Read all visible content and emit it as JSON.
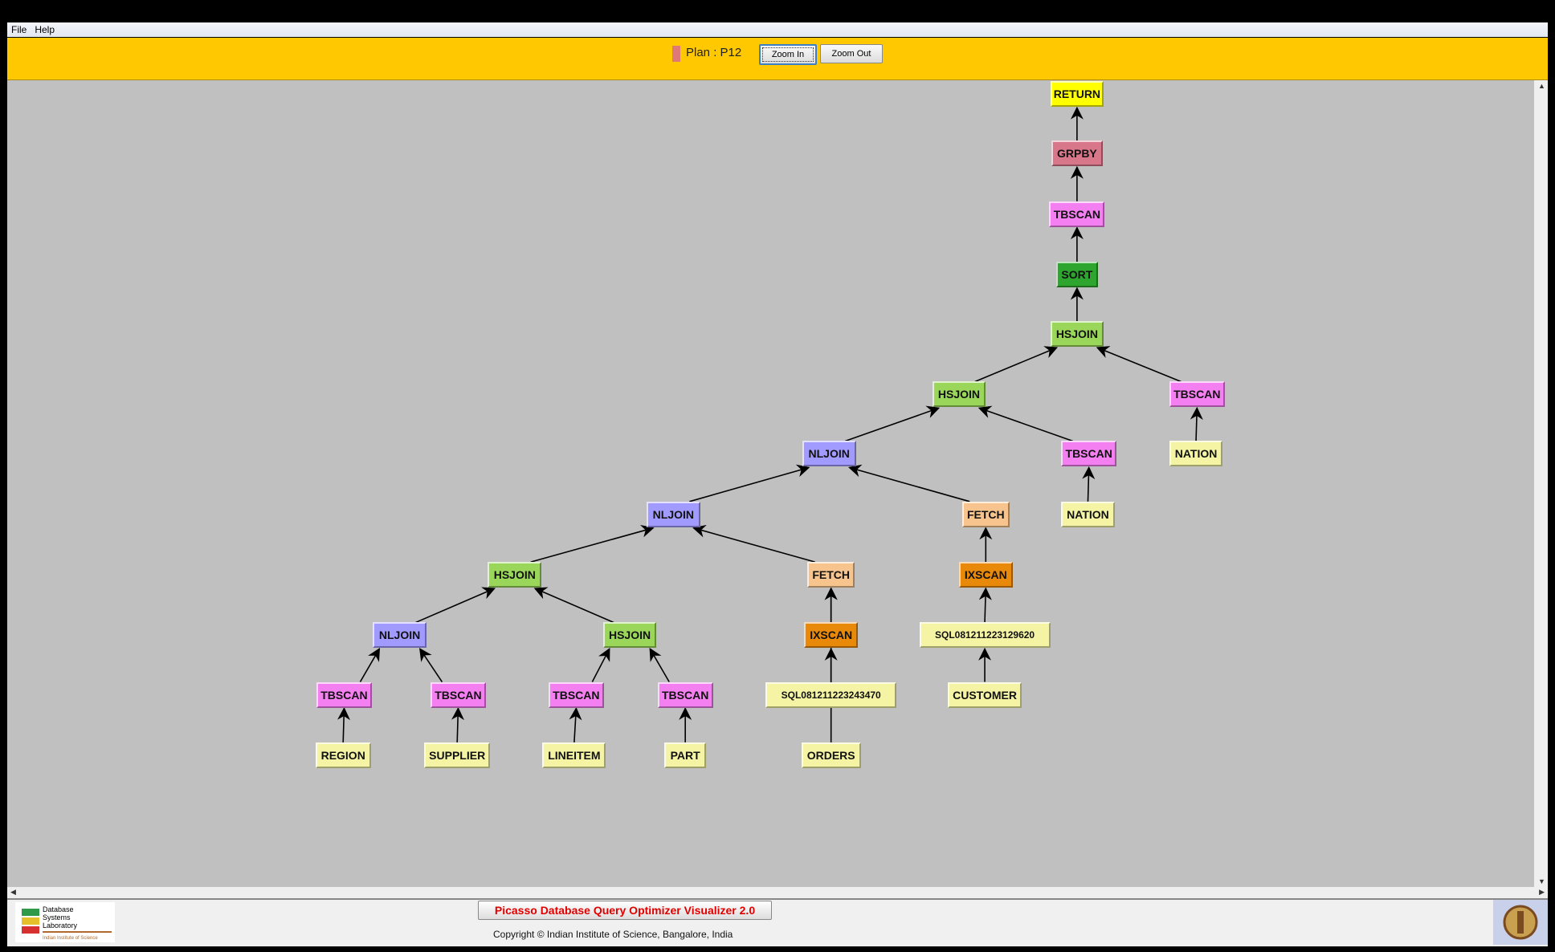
{
  "menu": {
    "items": [
      "File",
      "Help"
    ]
  },
  "toolbar": {
    "plan_label": "Plan : P12",
    "plan_color": "#e07878",
    "zoom_in": "Zoom In",
    "zoom_out": "Zoom Out"
  },
  "footer": {
    "title": "Picasso Database Query Optimizer Visualizer 2.0",
    "copyright": "Copyright © Indian Institute of Science, Bangalore, India",
    "lab_logo_text": "Database Systems Laboratory — Indian Institute of Science"
  },
  "type_colors": {
    "RETURN": "#ffff00",
    "GRPBY": "#d9778a",
    "TBSCAN": "#f47ff0",
    "SORT": "#2ea52e",
    "HSJOIN": "#9ad65a",
    "NLJOIN": "#a29bff",
    "FETCH": "#f6c48c",
    "IXSCAN": "#e8890a",
    "TABLE": "#f4f4a4"
  },
  "plan": {
    "nodes": [
      {
        "id": 0,
        "label": "RETURN",
        "type": "RETURN",
        "parent": null
      },
      {
        "id": 1,
        "label": "GRPBY",
        "type": "GRPBY",
        "parent": 0
      },
      {
        "id": 2,
        "label": "TBSCAN",
        "type": "TBSCAN",
        "parent": 1
      },
      {
        "id": 3,
        "label": "SORT",
        "type": "SORT",
        "parent": 2
      },
      {
        "id": 4,
        "label": "HSJOIN",
        "type": "HSJOIN",
        "parent": 3
      },
      {
        "id": 5,
        "label": "HSJOIN",
        "type": "HSJOIN",
        "parent": 4
      },
      {
        "id": 6,
        "label": "TBSCAN",
        "type": "TBSCAN",
        "parent": 4
      },
      {
        "id": 7,
        "label": "NATION",
        "type": "TABLE",
        "parent": 6
      },
      {
        "id": 8,
        "label": "NLJOIN",
        "type": "NLJOIN",
        "parent": 5
      },
      {
        "id": 9,
        "label": "TBSCAN",
        "type": "TBSCAN",
        "parent": 5
      },
      {
        "id": 10,
        "label": "NATION",
        "type": "TABLE",
        "parent": 9
      },
      {
        "id": 11,
        "label": "NLJOIN",
        "type": "NLJOIN",
        "parent": 8
      },
      {
        "id": 12,
        "label": "FETCH",
        "type": "FETCH",
        "parent": 8
      },
      {
        "id": 13,
        "label": "IXSCAN",
        "type": "IXSCAN",
        "parent": 12
      },
      {
        "id": 14,
        "label": "SQL081211223129620",
        "type": "TABLE",
        "parent": 13
      },
      {
        "id": 15,
        "label": "CUSTOMER",
        "type": "TABLE",
        "parent": 14
      },
      {
        "id": 16,
        "label": "HSJOIN",
        "type": "HSJOIN",
        "parent": 11
      },
      {
        "id": 17,
        "label": "FETCH",
        "type": "FETCH",
        "parent": 11
      },
      {
        "id": 18,
        "label": "IXSCAN",
        "type": "IXSCAN",
        "parent": 17
      },
      {
        "id": 19,
        "label": "SQL081211223243470",
        "type": "TABLE",
        "parent": 18
      },
      {
        "id": 20,
        "label": "ORDERS",
        "type": "TABLE",
        "parent": 17
      },
      {
        "id": 21,
        "label": "NLJOIN",
        "type": "NLJOIN",
        "parent": 16
      },
      {
        "id": 22,
        "label": "HSJOIN",
        "type": "HSJOIN",
        "parent": 16
      },
      {
        "id": 23,
        "label": "TBSCAN",
        "type": "TBSCAN",
        "parent": 21
      },
      {
        "id": 24,
        "label": "REGION",
        "type": "TABLE",
        "parent": 23
      },
      {
        "id": 25,
        "label": "TBSCAN",
        "type": "TBSCAN",
        "parent": 21
      },
      {
        "id": 26,
        "label": "SUPPLIER",
        "type": "TABLE",
        "parent": 25
      },
      {
        "id": 27,
        "label": "TBSCAN",
        "type": "TBSCAN",
        "parent": 22
      },
      {
        "id": 28,
        "label": "LINEITEM",
        "type": "TABLE",
        "parent": 27
      },
      {
        "id": 29,
        "label": "TBSCAN",
        "type": "TBSCAN",
        "parent": 22
      },
      {
        "id": 30,
        "label": "PART",
        "type": "TABLE",
        "parent": 29
      }
    ]
  }
}
